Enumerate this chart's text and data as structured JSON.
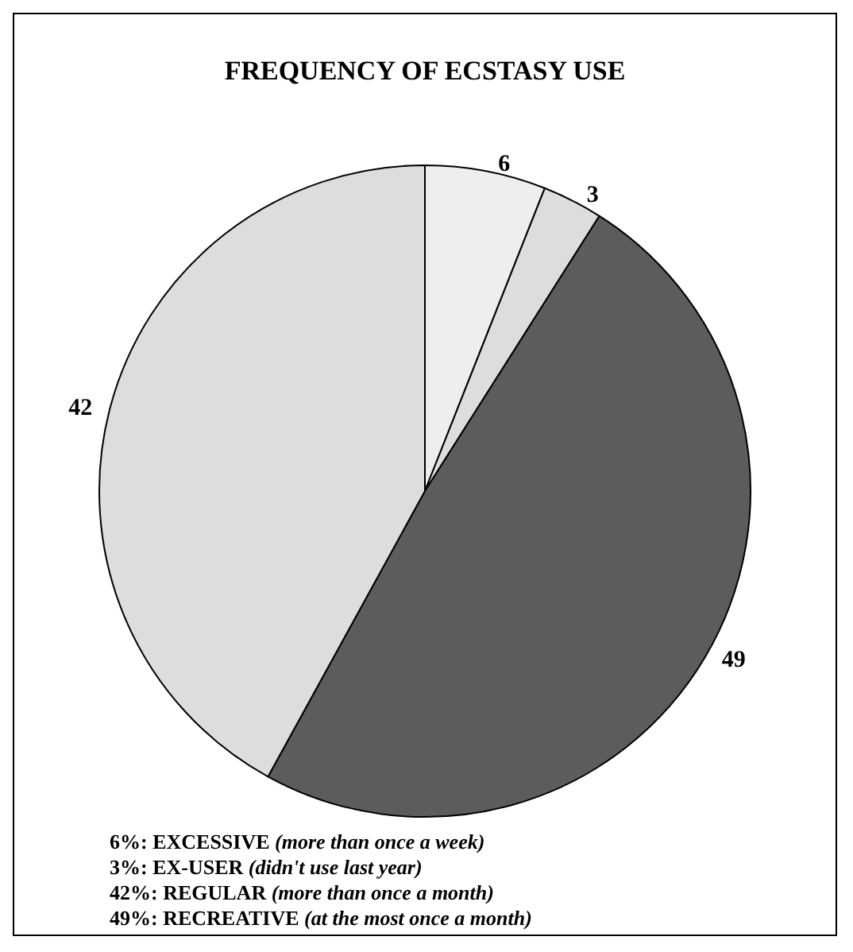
{
  "chart_data": {
    "type": "pie",
    "title": "FREQUENCY OF ECSTASY USE",
    "categories": [
      null,
      null,
      null,
      null
    ],
    "values": [
      6,
      3,
      49,
      42
    ],
    "colors": [
      "#eeeeee",
      "#dddddd",
      "#5c5c5c",
      "#dddddd"
    ],
    "data_labels": true,
    "annotations": [
      "6%: EXCESSIVE (more than once a week)",
      "3%: EX-USER (didn't use last year)",
      "42%: REGULAR (more than once a month)",
      "49%: RECREATIVE (at the most once a month)"
    ]
  }
}
